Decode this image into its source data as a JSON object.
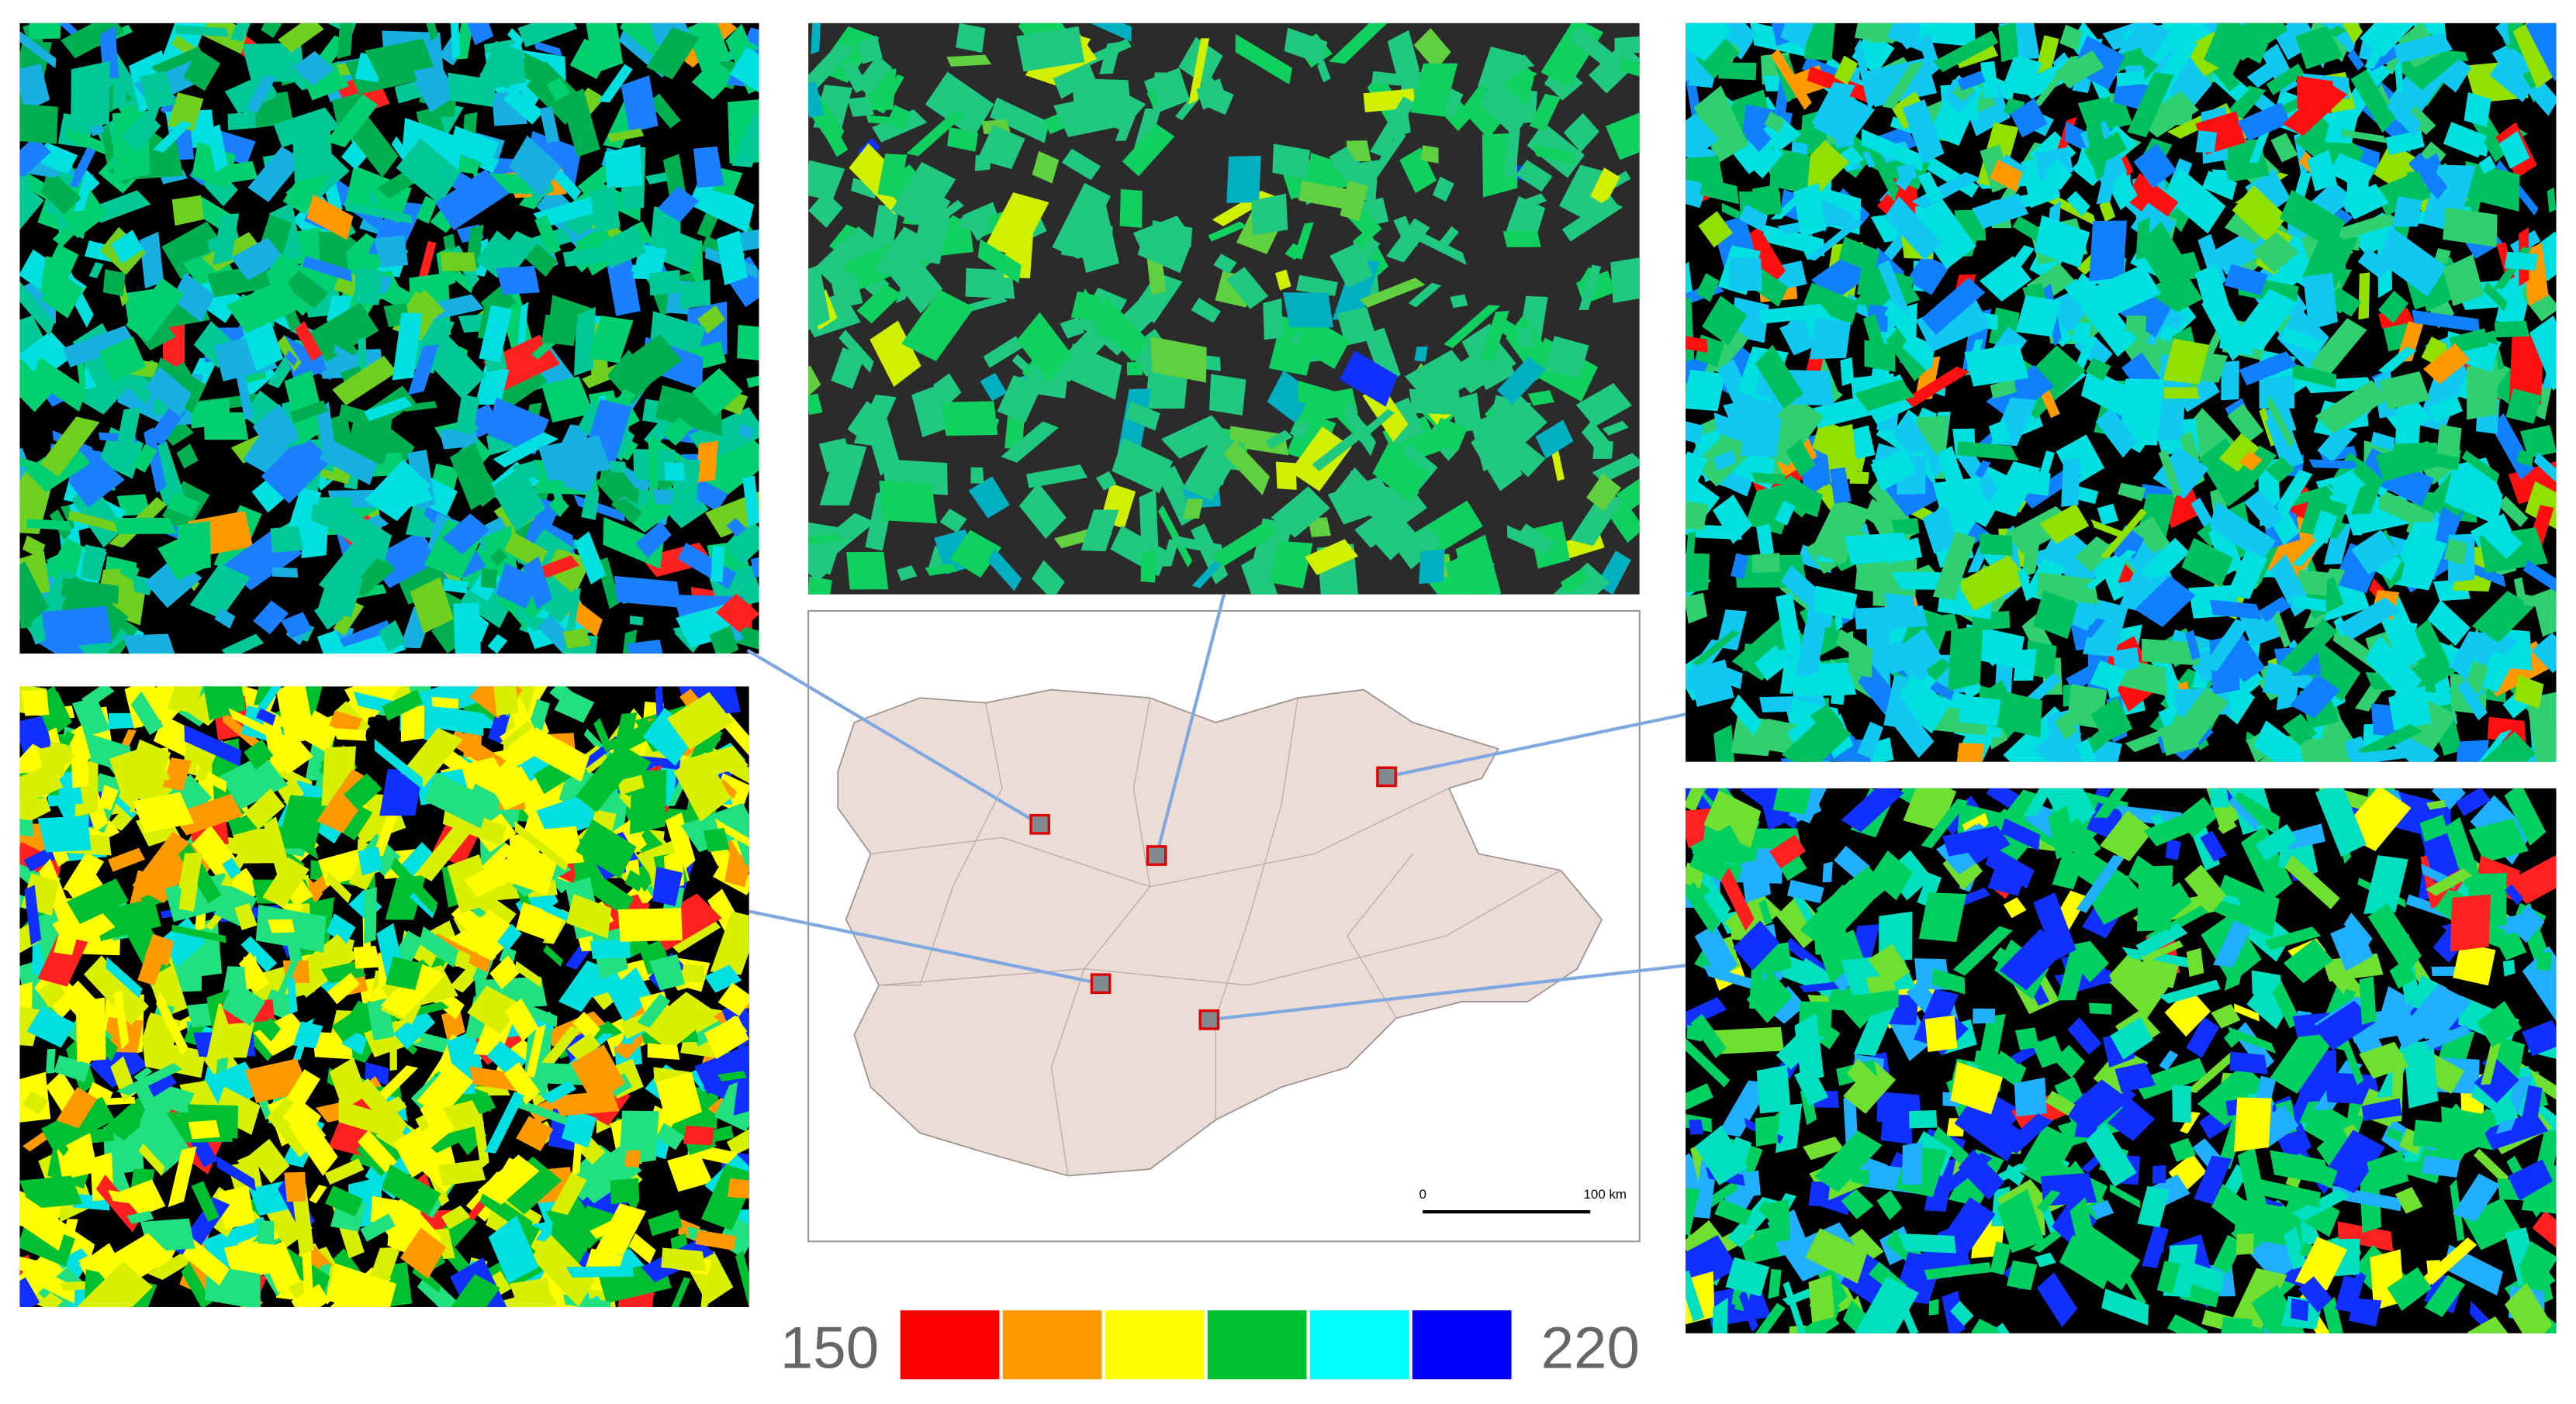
{
  "legend": {
    "min_label": "150",
    "max_label": "220",
    "colors": [
      "#ff0000",
      "#ff9900",
      "#ffff00",
      "#00c032",
      "#00ffff",
      "#0000ff"
    ]
  },
  "scale_bar": {
    "start_label": "0",
    "end_label": "100 km"
  }
}
